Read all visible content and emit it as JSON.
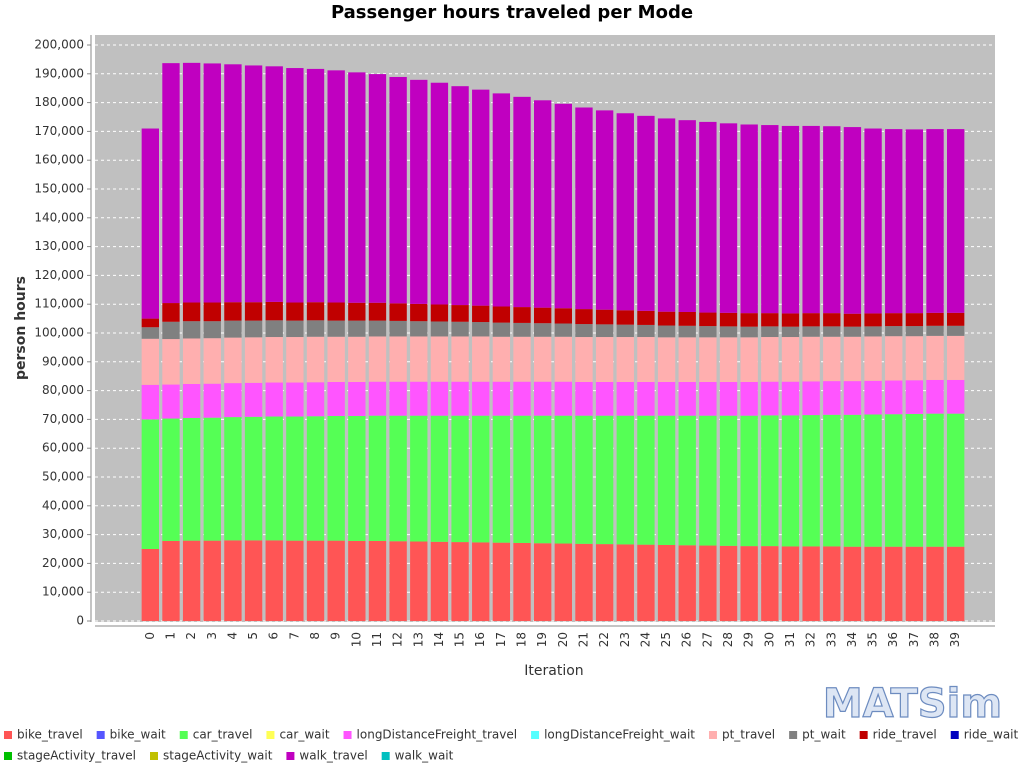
{
  "chart_data": {
    "type": "stacked_bar",
    "title": "Passenger hours traveled per Mode",
    "x_label": "Iteration",
    "y_label": "person hours",
    "logo": "MATSim",
    "grid": true,
    "categories": [
      "0",
      "1",
      "2",
      "3",
      "4",
      "5",
      "6",
      "7",
      "8",
      "9",
      "10",
      "11",
      "12",
      "13",
      "14",
      "15",
      "16",
      "17",
      "18",
      "19",
      "20",
      "21",
      "22",
      "23",
      "24",
      "25",
      "26",
      "27",
      "28",
      "29",
      "30",
      "31",
      "32",
      "33",
      "34",
      "35",
      "36",
      "37",
      "38",
      "39"
    ],
    "ylim": [
      0,
      200000
    ],
    "yticks": [
      0,
      {
        "value": 10000,
        "label": "10,000"
      },
      {
        "value": 20000,
        "label": "20,000"
      },
      {
        "value": 30000,
        "label": "30,000"
      },
      {
        "value": 40000,
        "label": "40,000"
      },
      {
        "value": 50000,
        "label": "50,000"
      },
      {
        "value": 60000,
        "label": "60,000"
      },
      {
        "value": 70000,
        "label": "70,000"
      },
      {
        "value": 80000,
        "label": "80,000"
      },
      {
        "value": 90000,
        "label": "90,000"
      },
      {
        "value": 100000,
        "label": "100,000"
      },
      {
        "value": 110000,
        "label": "110,000"
      },
      {
        "value": 120000,
        "label": "120,000"
      },
      {
        "value": 130000,
        "label": "130,000"
      },
      {
        "value": 140000,
        "label": "140,000"
      },
      {
        "value": 150000,
        "label": "150,000"
      },
      {
        "value": 160000,
        "label": "160,000"
      },
      {
        "value": 170000,
        "label": "170,000"
      },
      {
        "value": 180000,
        "label": "180,000"
      },
      {
        "value": 190000,
        "label": "190,000"
      },
      {
        "value": 200000,
        "label": "200,000"
      }
    ],
    "series": [
      {
        "name": "bike_travel",
        "color": "#ff5555",
        "values": [
          25000,
          27800,
          27900,
          27900,
          28000,
          28000,
          28000,
          27900,
          27900,
          27900,
          27800,
          27800,
          27700,
          27600,
          27500,
          27400,
          27300,
          27200,
          27100,
          27000,
          26900,
          26800,
          26700,
          26600,
          26500,
          26400,
          26300,
          26200,
          26100,
          26000,
          26000,
          25900,
          25900,
          25900,
          25800,
          25800,
          25800,
          25800,
          25800,
          25800
        ]
      },
      {
        "name": "bike_wait",
        "color": "#5555ff",
        "values": [
          0,
          0,
          0,
          0,
          0,
          0,
          0,
          0,
          0,
          0,
          0,
          0,
          0,
          0,
          0,
          0,
          0,
          0,
          0,
          0,
          0,
          0,
          0,
          0,
          0,
          0,
          0,
          0,
          0,
          0,
          0,
          0,
          0,
          0,
          0,
          0,
          0,
          0,
          0,
          0
        ]
      },
      {
        "name": "car_travel",
        "color": "#55ff55",
        "values": [
          45000,
          42500,
          42600,
          42700,
          42800,
          42900,
          43000,
          43100,
          43200,
          43300,
          43400,
          43500,
          43600,
          43700,
          43800,
          43900,
          44000,
          44100,
          44200,
          44300,
          44400,
          44500,
          44600,
          44700,
          44800,
          44900,
          45000,
          45100,
          45200,
          45300,
          45400,
          45500,
          45600,
          45700,
          45800,
          45900,
          46000,
          46100,
          46200,
          46200
        ]
      },
      {
        "name": "car_wait",
        "color": "#ffff55",
        "values": [
          0,
          0,
          0,
          0,
          0,
          0,
          0,
          0,
          0,
          0,
          0,
          0,
          0,
          0,
          0,
          0,
          0,
          0,
          0,
          0,
          0,
          0,
          0,
          0,
          0,
          0,
          0,
          0,
          0,
          0,
          0,
          0,
          0,
          0,
          0,
          0,
          0,
          0,
          0,
          0
        ]
      },
      {
        "name": "longDistanceFreight_travel",
        "color": "#ff55ff",
        "values": [
          12000,
          11800,
          11800,
          11800,
          11800,
          11800,
          11800,
          11800,
          11800,
          11800,
          11800,
          11800,
          11800,
          11800,
          11800,
          11800,
          11800,
          11800,
          11800,
          11800,
          11800,
          11700,
          11700,
          11700,
          11700,
          11700,
          11700,
          11700,
          11700,
          11700,
          11700,
          11700,
          11700,
          11700,
          11700,
          11700,
          11700,
          11700,
          11700,
          11700
        ]
      },
      {
        "name": "longDistanceFreight_wait",
        "color": "#55ffff",
        "values": [
          0,
          0,
          0,
          0,
          0,
          0,
          0,
          0,
          0,
          0,
          0,
          0,
          0,
          0,
          0,
          0,
          0,
          0,
          0,
          0,
          0,
          0,
          0,
          0,
          0,
          0,
          0,
          0,
          0,
          0,
          0,
          0,
          0,
          0,
          0,
          0,
          0,
          0,
          0,
          0
        ]
      },
      {
        "name": "pt_travel",
        "color": "#ffafaf",
        "values": [
          16000,
          15800,
          15800,
          15800,
          15800,
          15800,
          15800,
          15800,
          15800,
          15700,
          15700,
          15700,
          15700,
          15700,
          15700,
          15700,
          15700,
          15600,
          15600,
          15600,
          15600,
          15600,
          15600,
          15600,
          15600,
          15500,
          15500,
          15500,
          15500,
          15500,
          15500,
          15500,
          15500,
          15400,
          15400,
          15400,
          15400,
          15300,
          15300,
          15300
        ]
      },
      {
        "name": "pt_wait",
        "color": "#808080",
        "values": [
          4000,
          6000,
          6000,
          5900,
          5900,
          5800,
          5800,
          5700,
          5700,
          5600,
          5600,
          5500,
          5400,
          5300,
          5200,
          5100,
          5000,
          4900,
          4800,
          4700,
          4600,
          4500,
          4400,
          4300,
          4200,
          4100,
          4000,
          3900,
          3800,
          3700,
          3700,
          3600,
          3600,
          3600,
          3500,
          3500,
          3500,
          3500,
          3500,
          3500
        ]
      },
      {
        "name": "ride_travel",
        "color": "#c00000",
        "values": [
          3000,
          6500,
          6500,
          6500,
          6400,
          6400,
          6400,
          6300,
          6300,
          6300,
          6200,
          6200,
          6100,
          6000,
          5900,
          5800,
          5700,
          5600,
          5500,
          5400,
          5300,
          5200,
          5100,
          5000,
          4900,
          4800,
          4800,
          4700,
          4700,
          4700,
          4600,
          4600,
          4600,
          4600,
          4500,
          4500,
          4500,
          4500,
          4500,
          4500
        ]
      },
      {
        "name": "ride_wait",
        "color": "#0000c0",
        "values": [
          0,
          0,
          0,
          0,
          0,
          0,
          0,
          0,
          0,
          0,
          0,
          0,
          0,
          0,
          0,
          0,
          0,
          0,
          0,
          0,
          0,
          0,
          0,
          0,
          0,
          0,
          0,
          0,
          0,
          0,
          0,
          0,
          0,
          0,
          0,
          0,
          0,
          0,
          0,
          0
        ]
      },
      {
        "name": "stageActivity_travel",
        "color": "#00c000",
        "values": [
          0,
          0,
          0,
          0,
          0,
          0,
          0,
          0,
          0,
          0,
          0,
          0,
          0,
          0,
          0,
          0,
          0,
          0,
          0,
          0,
          0,
          0,
          0,
          0,
          0,
          0,
          0,
          0,
          0,
          0,
          0,
          0,
          0,
          0,
          0,
          0,
          0,
          0,
          0,
          0
        ]
      },
      {
        "name": "stageActivity_wait",
        "color": "#c0c000",
        "values": [
          0,
          0,
          0,
          0,
          0,
          0,
          0,
          0,
          0,
          0,
          0,
          0,
          0,
          0,
          0,
          0,
          0,
          0,
          0,
          0,
          0,
          0,
          0,
          0,
          0,
          0,
          0,
          0,
          0,
          0,
          0,
          0,
          0,
          0,
          0,
          0,
          0,
          0,
          0,
          0
        ]
      },
      {
        "name": "walk_travel",
        "color": "#c000c0",
        "values": [
          66000,
          83300,
          83200,
          83000,
          82600,
          82200,
          81800,
          81400,
          81000,
          80600,
          80000,
          79400,
          78600,
          77800,
          77000,
          76000,
          75000,
          74000,
          73000,
          72000,
          71000,
          70000,
          69200,
          68400,
          67700,
          67100,
          66600,
          66200,
          65800,
          65500,
          65300,
          65100,
          65000,
          64900,
          64800,
          64200,
          63900,
          63800,
          63800,
          63800
        ]
      },
      {
        "name": "walk_wait",
        "color": "#00c0c0",
        "values": [
          0,
          0,
          0,
          0,
          0,
          0,
          0,
          0,
          0,
          0,
          0,
          0,
          0,
          0,
          0,
          0,
          0,
          0,
          0,
          0,
          0,
          0,
          0,
          0,
          0,
          0,
          0,
          0,
          0,
          0,
          0,
          0,
          0,
          0,
          0,
          0,
          0,
          0,
          0,
          0
        ]
      }
    ]
  }
}
